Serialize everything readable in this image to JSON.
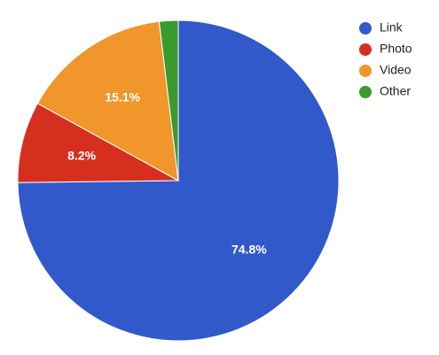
{
  "chart_data": {
    "type": "pie",
    "categories": [
      "Link",
      "Photo",
      "Video",
      "Other"
    ],
    "values": [
      74.8,
      8.2,
      15.1,
      1.9
    ],
    "value_labels": [
      "74.8%",
      "8.2%",
      "15.1%",
      null
    ],
    "colors": [
      "#3159c9",
      "#d62f1f",
      "#f0962a",
      "#3a9a2e"
    ],
    "legend": "right"
  }
}
